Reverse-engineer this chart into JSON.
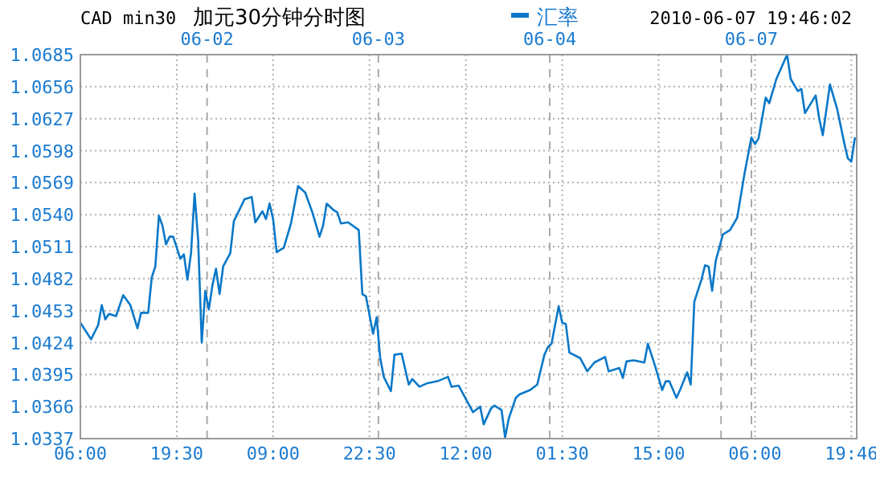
{
  "chart_data": {
    "type": "line",
    "title": "加元30分钟分时图",
    "subtitle": "CAD min30",
    "annotations": [
      "2010-06-07 19:46:02",
      "06-02",
      "06-03",
      "06-04",
      "06-07"
    ],
    "categories": [
      "06:00",
      null,
      null,
      null,
      null,
      null,
      null,
      null,
      null,
      null,
      null,
      null,
      null,
      null,
      null,
      null,
      null,
      null,
      null,
      null,
      null,
      null,
      null,
      null,
      null,
      null,
      null,
      "19:30",
      null,
      null,
      null,
      null,
      null,
      null,
      null,
      null,
      null,
      null,
      null,
      null,
      null,
      null,
      null,
      null,
      null,
      null,
      null,
      null,
      null,
      null,
      null,
      null,
      null,
      null,
      "09:00",
      null,
      null,
      null,
      null,
      null,
      null,
      null,
      null,
      null,
      null,
      null,
      null,
      null,
      null,
      null,
      null,
      null,
      null,
      null,
      null,
      null,
      null,
      null,
      null,
      null,
      null,
      "22:30",
      null,
      null,
      null,
      null,
      null,
      null,
      null,
      null,
      null,
      null,
      null,
      null,
      null,
      null,
      null,
      null,
      null,
      null,
      null,
      null,
      null,
      null,
      null,
      null,
      null,
      null,
      "12:00",
      null,
      null,
      null,
      null,
      null,
      null,
      null,
      null,
      null,
      null,
      null,
      null,
      null,
      null,
      null,
      null,
      null,
      null,
      null,
      null,
      null,
      null,
      null,
      null,
      null,
      null,
      "01:30",
      null,
      null,
      null,
      null,
      null,
      null,
      null,
      null,
      null,
      null,
      null,
      null,
      null,
      null,
      null,
      null,
      null,
      null,
      null,
      null,
      null,
      null,
      null,
      null,
      null,
      null,
      "15:00",
      null,
      null,
      null,
      null,
      null,
      null,
      null,
      null,
      null,
      null,
      null,
      null,
      null,
      null,
      null,
      null,
      null,
      null,
      null,
      null,
      null,
      null,
      null,
      null,
      null,
      null,
      "06:00",
      null,
      null,
      null,
      null,
      null,
      null,
      null,
      null,
      null,
      null,
      null,
      null,
      null,
      null,
      null,
      null,
      null,
      null,
      null,
      null,
      null,
      null,
      null,
      null,
      null,
      null,
      "19:46",
      null
    ],
    "series": [
      {
        "name": "汇率",
        "color": "#0a78c8",
        "values": [
          1.0442,
          null,
          null,
          1.0427,
          null,
          1.044,
          1.0458,
          1.0445,
          1.045,
          null,
          1.0448,
          null,
          1.0467,
          null,
          1.0458,
          null,
          1.0437,
          1.0451,
          null,
          1.0451,
          1.0483,
          1.0493,
          1.0539,
          1.053,
          1.0513,
          1.052,
          1.052,
          null,
          1.05,
          1.0504,
          1.0481,
          1.0505,
          1.0559,
          1.0517,
          1.0424,
          1.0471,
          1.0454,
          1.0476,
          1.0491,
          1.0468,
          1.0493,
          null,
          1.0505,
          1.0534,
          null,
          null,
          1.0554,
          null,
          1.0556,
          1.0533,
          null,
          1.0543,
          1.0536,
          1.055,
          1.0536,
          1.0506,
          null,
          1.051,
          null,
          1.0532,
          null,
          1.0566,
          null,
          1.056,
          null,
          1.0542,
          null,
          1.052,
          1.053,
          1.055,
          null,
          1.0544,
          1.0542,
          1.0532,
          null,
          1.0533,
          null,
          null,
          1.0526,
          1.0468,
          1.0466,
          null,
          1.0432,
          1.0447,
          1.041,
          1.0393,
          null,
          1.038,
          1.0413,
          null,
          1.0414,
          null,
          1.0386,
          1.0391,
          null,
          1.0384,
          null,
          1.0387,
          null,
          null,
          1.0389,
          null,
          null,
          1.0393,
          1.0384,
          null,
          1.0385,
          null,
          null,
          1.0367,
          1.0361,
          null,
          1.0366,
          1.035,
          null,
          1.0364,
          1.0367,
          null,
          1.0363,
          1.0338,
          1.0355,
          null,
          1.0374,
          1.0377,
          null,
          null,
          1.0381,
          null,
          1.0386,
          null,
          1.0413,
          1.042,
          1.0423,
          null,
          1.0457,
          1.0442,
          1.0441,
          1.0415,
          null,
          null,
          1.041,
          null,
          1.0398,
          null,
          1.0406,
          null,
          null,
          1.0411,
          1.0398,
          null,
          null,
          1.0401,
          1.0392,
          1.0407,
          null,
          1.0408,
          null,
          null,
          1.0406,
          1.0423,
          null,
          1.0403,
          null,
          1.0381,
          1.0389,
          1.0389,
          null,
          1.0374,
          1.0381,
          null,
          1.0397,
          1.0386,
          1.0461,
          null,
          1.0481,
          1.0494,
          1.0493,
          1.0471,
          1.0498,
          null,
          1.0522,
          null,
          1.0526,
          null,
          1.0537,
          null,
          1.0576,
          null,
          1.061,
          1.0604,
          1.0609,
          null,
          1.0646,
          1.0641,
          null,
          1.0663,
          null,
          null,
          1.0685,
          1.0663,
          null,
          1.0652,
          1.0654,
          1.0632,
          null,
          null,
          1.0648,
          1.0627,
          1.0612,
          null,
          1.0658,
          null,
          1.0636,
          null,
          1.0605,
          1.0591,
          1.0588,
          1.061
        ]
      }
    ],
    "ylim": [
      1.0337,
      1.0685
    ],
    "yticks": [
      {
        "value": 1.0337,
        "label": "1.0337"
      },
      {
        "value": 1.0366,
        "label": "1.0366"
      },
      {
        "value": 1.0395,
        "label": "1.0395"
      },
      {
        "value": 1.0424,
        "label": "1.0424"
      },
      {
        "value": 1.0453,
        "label": "1.0453"
      },
      {
        "value": 1.0482,
        "label": "1.0482"
      },
      {
        "value": 1.0511,
        "label": "1.0511"
      },
      {
        "value": 1.054,
        "label": "1.0540"
      },
      {
        "value": 1.0569,
        "label": "1.0569"
      },
      {
        "value": 1.0598,
        "label": "1.0598"
      },
      {
        "value": 1.0627,
        "label": "1.0627"
      },
      {
        "value": 1.0656,
        "label": "1.0656"
      },
      {
        "value": 1.0685,
        "label": "1.0685"
      }
    ],
    "grid": true,
    "legend": "top",
    "marker": "none",
    "line_style": "solid"
  }
}
